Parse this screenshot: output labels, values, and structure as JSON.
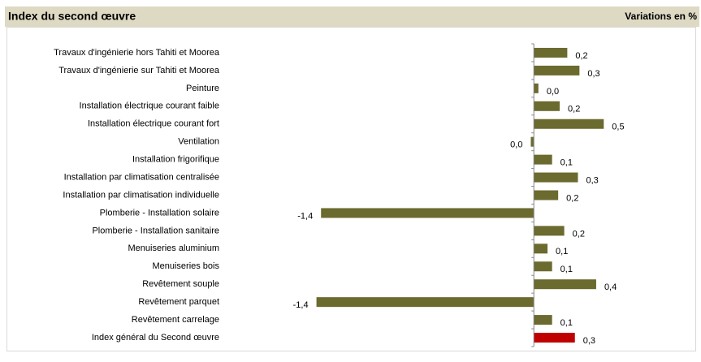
{
  "chart_data": {
    "type": "barh",
    "title": "Index du second œuvre",
    "subtitle": "Variations en %",
    "categories": [
      "Travaux d'ingénierie hors Tahiti et Moorea",
      "Travaux d'ingénierie sur Tahiti et Moorea",
      "Peinture",
      "Installation électrique courant faible",
      "Installation électrique courant fort",
      "Ventilation",
      "Installation frigorifique",
      "Installation par climatisation centralisée",
      "Installation par climatisation individuelle",
      "Plomberie - Installation solaire",
      "Plomberie - Installation sanitaire",
      "Menuiseries aluminium",
      "Menuiseries bois",
      "Revêtement souple",
      "Revêtement parquet",
      "Revêtement carrelage",
      "Index général du Second œuvre"
    ],
    "values": [
      0.22,
      0.3,
      0.03,
      0.17,
      0.46,
      -0.02,
      0.12,
      0.29,
      0.16,
      -1.4,
      0.2,
      0.09,
      0.12,
      0.41,
      -1.43,
      0.12,
      0.27
    ],
    "value_labels": [
      "0,2",
      "0,3",
      "0,0",
      "0,2",
      "0,5",
      "0,0",
      "0,1",
      "0,3",
      "0,2",
      "-1,4",
      "0,2",
      "0,1",
      "0,1",
      "0,4",
      "-1,4",
      "0,1",
      "0,3"
    ],
    "colors": [
      "#6b6a2f",
      "#6b6a2f",
      "#6b6a2f",
      "#6b6a2f",
      "#6b6a2f",
      "#6b6a2f",
      "#6b6a2f",
      "#6b6a2f",
      "#6b6a2f",
      "#6b6a2f",
      "#6b6a2f",
      "#6b6a2f",
      "#6b6a2f",
      "#6b6a2f",
      "#6b6a2f",
      "#6b6a2f",
      "#c00000"
    ],
    "xlim": [
      -1.5,
      0.6
    ]
  }
}
